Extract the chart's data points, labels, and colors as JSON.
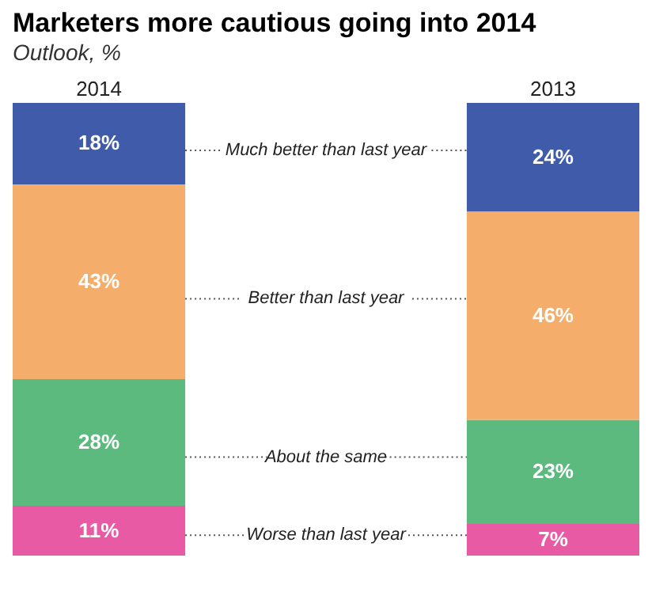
{
  "chart_data": {
    "type": "bar",
    "title": "Marketers more cautious going into 2014",
    "subtitle": "Outlook, %",
    "categories": [
      "2014",
      "2013"
    ],
    "stacked": true,
    "legend": false,
    "grid": false,
    "series": [
      {
        "name": "Worse than last year",
        "color": "#e85aa3",
        "values": [
          11,
          7
        ],
        "value_labels": [
          "11%",
          "7%"
        ]
      },
      {
        "name": "About the same",
        "color": "#5dba7e",
        "values": [
          28,
          23
        ],
        "value_labels": [
          "28%",
          "23%"
        ]
      },
      {
        "name": "Better than last year",
        "color": "#f5ad6b",
        "values": [
          43,
          46
        ],
        "value_labels": [
          "43%",
          "46%"
        ]
      },
      {
        "name": "Much better than last year",
        "color": "#3f5ba9",
        "values": [
          18,
          24
        ],
        "value_labels": [
          "18%",
          "24%"
        ]
      }
    ]
  }
}
